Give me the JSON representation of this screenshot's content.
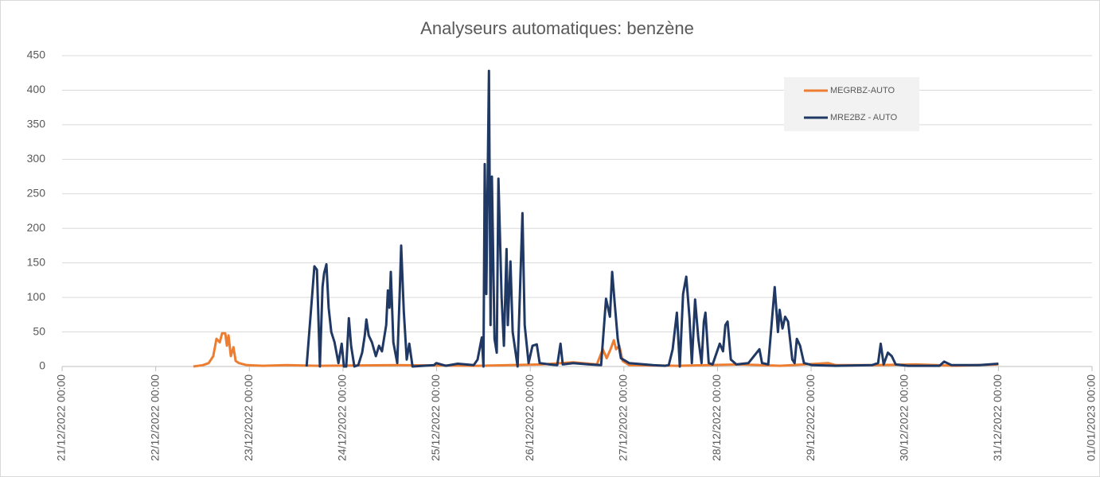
{
  "chart_data": {
    "type": "line",
    "title": "Analyseurs automatiques: benzène",
    "xlim": [
      "21/12/2022 00:00",
      "01/01/2023 00:00"
    ],
    "xticks": [
      "21/12/2022 00:00",
      "22/12/2022 00:00",
      "23/12/2022 00:00",
      "24/12/2022 00:00",
      "25/12/2022 00:00",
      "26/12/2022 00:00",
      "27/12/2022 00:00",
      "28/12/2022 00:00",
      "29/12/2022 00:00",
      "30/12/2022 00:00",
      "31/12/2022 00:00",
      "01/01/2023 00:00"
    ],
    "ylim": [
      0,
      450
    ],
    "yticks": [
      0,
      50,
      100,
      150,
      200,
      250,
      300,
      350,
      400,
      450
    ],
    "grid": true,
    "legend": "upper right",
    "series": [
      {
        "name": "MEGRBZ-AUTO",
        "color": "#ed7d31",
        "x": [
          "22/12/2022 09:40",
          "22/12/2022 12:05",
          "22/12/2022 13:35",
          "22/12/2022 14:45",
          "22/12/2022 15:35",
          "22/12/2022 16:25",
          "22/12/2022 17:00",
          "22/12/2022 17:50",
          "22/12/2022 18:15",
          "22/12/2022 18:40",
          "22/12/2022 19:15",
          "22/12/2022 19:55",
          "22/12/2022 20:30",
          "22/12/2022 21:20",
          "22/12/2022 23:20",
          "23/12/2022 03:25",
          "23/12/2022 09:35",
          "23/12/2022 17:40",
          "24/12/2022 14:05",
          "25/12/2022 10:30",
          "26/12/2022 02:55",
          "26/12/2022 11:00",
          "26/12/2022 17:05",
          "26/12/2022 18:35",
          "26/12/2022 19:35",
          "26/12/2022 20:35",
          "26/12/2022 21:25",
          "26/12/2022 22:00",
          "26/12/2022 22:50",
          "26/12/2022 23:40",
          "27/12/2022 01:20",
          "27/12/2022 13:35",
          "28/12/2022 05:55",
          "28/12/2022 16:05",
          "29/12/2022 04:20",
          "29/12/2022 06:20",
          "29/12/2022 16:35",
          "30/12/2022 02:50",
          "30/12/2022 13:00",
          "31/12/2022 00:00"
        ],
        "values": [
          0,
          2,
          5,
          15,
          40,
          35,
          48,
          48,
          30,
          45,
          15,
          28,
          8,
          5,
          2,
          1,
          2,
          1,
          2,
          1,
          3,
          6,
          3,
          25,
          12,
          25,
          38,
          25,
          30,
          8,
          2,
          1,
          3,
          1,
          5,
          2,
          2,
          3,
          1,
          3
        ]
      },
      {
        "name": "MRE2BZ - AUTO",
        "color": "#203864",
        "x": [
          "23/12/2022 14:40",
          "23/12/2022 16:40",
          "23/12/2022 17:20",
          "23/12/2022 18:05",
          "23/12/2022 18:45",
          "23/12/2022 19:10",
          "23/12/2022 19:45",
          "23/12/2022 20:20",
          "23/12/2022 21:00",
          "23/12/2022 21:50",
          "23/12/2022 22:50",
          "23/12/2022 23:40",
          "24/12/2022 00:15",
          "24/12/2022 00:50",
          "24/12/2022 01:30",
          "24/12/2022 02:05",
          "24/12/2022 02:55",
          "24/12/2022 03:55",
          "24/12/2022 04:55",
          "24/12/2022 05:35",
          "24/12/2022 06:00",
          "24/12/2022 06:35",
          "24/12/2022 07:25",
          "24/12/2022 08:25",
          "24/12/2022 09:15",
          "24/12/2022 10:00",
          "24/12/2022 11:05",
          "24/12/2022 11:30",
          "24/12/2022 11:55",
          "24/12/2022 12:15",
          "24/12/2022 12:55",
          "24/12/2022 13:55",
          "24/12/2022 14:30",
          "24/12/2022 14:55",
          "24/12/2022 15:35",
          "24/12/2022 16:20",
          "24/12/2022 17:00",
          "24/12/2022 17:50",
          "24/12/2022 23:20",
          "24/12/2022 23:55",
          "25/12/2022 02:20",
          "25/12/2022 05:25",
          "25/12/2022 09:30",
          "25/12/2022 10:30",
          "25/12/2022 11:35",
          "25/12/2022 12:00",
          "25/12/2022 12:20",
          "25/12/2022 12:45",
          "25/12/2022 13:25",
          "25/12/2022 13:50",
          "25/12/2022 14:10",
          "25/12/2022 14:50",
          "25/12/2022 15:25",
          "25/12/2022 15:50",
          "25/12/2022 16:40",
          "25/12/2022 17:15",
          "25/12/2022 17:55",
          "25/12/2022 18:15",
          "25/12/2022 18:55",
          "25/12/2022 19:30",
          "25/12/2022 20:45",
          "25/12/2022 22:00",
          "25/12/2022 22:35",
          "25/12/2022 23:35",
          "26/12/2022 00:35",
          "26/12/2022 01:40",
          "26/12/2022 02:25",
          "26/12/2022 04:55",
          "26/12/2022 06:55",
          "26/12/2022 07:45",
          "26/12/2022 08:20",
          "26/12/2022 11:00",
          "26/12/2022 15:05",
          "26/12/2022 18:10",
          "26/12/2022 19:25",
          "26/12/2022 20:25",
          "26/12/2022 21:00",
          "26/12/2022 21:40",
          "26/12/2022 22:25",
          "26/12/2022 23:15",
          "27/12/2022 01:20",
          "27/12/2022 07:25",
          "27/12/2022 10:30",
          "27/12/2022 11:30",
          "27/12/2022 12:30",
          "27/12/2022 13:35",
          "27/12/2022 14:20",
          "27/12/2022 15:10",
          "27/12/2022 16:00",
          "27/12/2022 16:50",
          "27/12/2022 17:25",
          "27/12/2022 18:15",
          "27/12/2022 19:05",
          "27/12/2022 19:55",
          "27/12/2022 20:30",
          "27/12/2022 20:55",
          "27/12/2022 21:45",
          "27/12/2022 22:45",
          "28/12/2022 00:35",
          "28/12/2022 01:25",
          "28/12/2022 02:00",
          "28/12/2022 02:35",
          "28/12/2022 03:25",
          "28/12/2022 04:50",
          "28/12/2022 07:55",
          "28/12/2022 10:45",
          "28/12/2022 11:25",
          "28/12/2022 13:00",
          "28/12/2022 14:40",
          "28/12/2022 15:30",
          "28/12/2022 15:55",
          "28/12/2022 16:40",
          "28/12/2022 17:20",
          "28/12/2022 18:05",
          "28/12/2022 19:10",
          "28/12/2022 19:45",
          "28/12/2022 20:20",
          "28/12/2022 21:10",
          "28/12/2022 22:10",
          "29/12/2022 00:15",
          "29/12/2022 06:20",
          "29/12/2022 15:35",
          "29/12/2022 17:10",
          "29/12/2022 17:50",
          "29/12/2022 18:35",
          "29/12/2022 19:40",
          "29/12/2022 20:40",
          "29/12/2022 21:40",
          "30/12/2022 00:45",
          "30/12/2022 08:55",
          "30/12/2022 10:05",
          "30/12/2022 12:00",
          "30/12/2022 19:05",
          "31/12/2022 00:00"
        ],
        "values": [
          0,
          145,
          140,
          0,
          115,
          135,
          148,
          85,
          50,
          35,
          5,
          33,
          0,
          0,
          70,
          30,
          0,
          2,
          20,
          45,
          68,
          45,
          35,
          15,
          30,
          22,
          60,
          110,
          85,
          137,
          35,
          5,
          100,
          175,
          80,
          10,
          33,
          0,
          2,
          5,
          1,
          4,
          2,
          10,
          42,
          0,
          293,
          105,
          428,
          60,
          275,
          40,
          20,
          272,
          100,
          30,
          170,
          60,
          152,
          50,
          0,
          222,
          60,
          5,
          30,
          32,
          5,
          3,
          2,
          33,
          3,
          5,
          3,
          2,
          98,
          72,
          137,
          90,
          40,
          12,
          5,
          2,
          1,
          2,
          25,
          78,
          0,
          105,
          130,
          70,
          5,
          97,
          40,
          5,
          65,
          78,
          5,
          3,
          33,
          22,
          60,
          65,
          10,
          3,
          5,
          25,
          5,
          3,
          115,
          50,
          82,
          55,
          72,
          65,
          10,
          5,
          40,
          30,
          5,
          2,
          1,
          2,
          5,
          33,
          3,
          20,
          15,
          3,
          1,
          1,
          7,
          2,
          2,
          4
        ]
      }
    ]
  }
}
